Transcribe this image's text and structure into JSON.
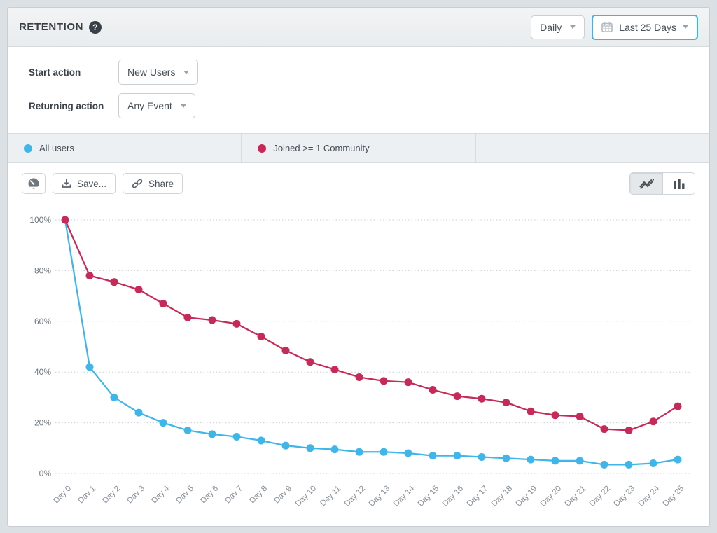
{
  "header": {
    "title": "RETENTION",
    "help": "?",
    "granularity_dropdown": {
      "value": "Daily"
    },
    "date_range_dropdown": {
      "value": "Last 25 Days"
    }
  },
  "controls": {
    "start_action": {
      "label": "Start action",
      "value": "New Users"
    },
    "returning_action": {
      "label": "Returning action",
      "value": "Any Event"
    }
  },
  "legend": [
    {
      "label": "All users",
      "color": "#3fb6e9"
    },
    {
      "label": "Joined >= 1 Community",
      "color": "#c62a58"
    },
    {
      "label": "",
      "color": ""
    }
  ],
  "toolbar": {
    "save_label": "Save...",
    "share_label": "Share"
  },
  "colors": {
    "accent_blue": "#3cb4e8",
    "series_blue": "#3fb6e9",
    "series_red": "#c62a58"
  },
  "chart_data": {
    "type": "line",
    "title": "",
    "xlabel": "",
    "ylabel": "",
    "ylim": [
      0,
      100
    ],
    "grid": "horizontal-dotted",
    "legend_position": "top-tabs",
    "y_ticks": [
      "100%",
      "80%",
      "60%",
      "40%",
      "20%",
      "0%"
    ],
    "x": [
      "Day 0",
      "Day 1",
      "Day 2",
      "Day 3",
      "Day 4",
      "Day 5",
      "Day 6",
      "Day 7",
      "Day 8",
      "Day 9",
      "Day 10",
      "Day 11",
      "Day 12",
      "Day 13",
      "Day 14",
      "Day 15",
      "Day 16",
      "Day 17",
      "Day 18",
      "Day 19",
      "Day 20",
      "Day 21",
      "Day 22",
      "Day 23",
      "Day 24",
      "Day 25"
    ],
    "series": [
      {
        "name": "All users",
        "color": "#3fb6e9",
        "values": [
          100,
          42,
          30,
          24,
          20,
          17,
          15.5,
          14.5,
          13,
          11,
          10,
          9.5,
          8.5,
          8.5,
          8,
          7,
          7,
          6.5,
          6,
          5.5,
          5,
          5,
          3.5,
          3.5,
          4,
          5.5
        ]
      },
      {
        "name": "Joined >= 1 Community",
        "color": "#c62a58",
        "values": [
          100,
          78,
          75.5,
          72.5,
          67,
          61.5,
          60.5,
          59,
          54,
          48.5,
          44,
          41,
          38,
          36.5,
          36,
          33,
          30.5,
          29.5,
          28,
          24.5,
          23,
          22.5,
          17.5,
          17,
          20.5,
          26.5
        ]
      }
    ]
  }
}
